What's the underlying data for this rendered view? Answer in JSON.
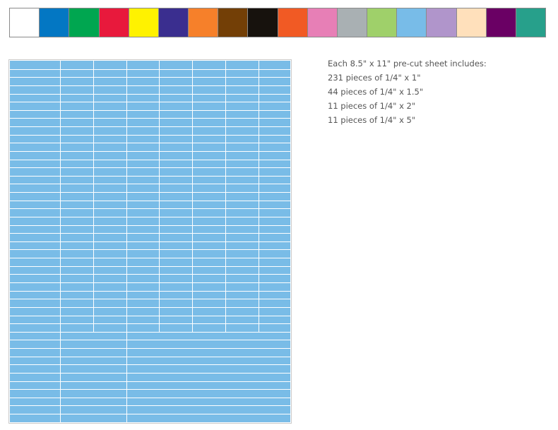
{
  "swatches": [
    {
      "color": "#ffffff",
      "name": "white"
    },
    {
      "color": "#0377c3",
      "name": "blue"
    },
    {
      "color": "#00a650",
      "name": "green"
    },
    {
      "color": "#e8193c",
      "name": "red"
    },
    {
      "color": "#fff200",
      "name": "yellow"
    },
    {
      "color": "#3a2e8f",
      "name": "indigo"
    },
    {
      "color": "#f6802a",
      "name": "orange"
    },
    {
      "color": "#733f06",
      "name": "brown"
    },
    {
      "color": "#17120d",
      "name": "black"
    },
    {
      "color": "#f15a24",
      "name": "red-orange"
    },
    {
      "color": "#e77fb6",
      "name": "pink"
    },
    {
      "color": "#a9b0b3",
      "name": "gray"
    },
    {
      "color": "#9fd06a",
      "name": "light-green"
    },
    {
      "color": "#78bce8",
      "name": "light-blue"
    },
    {
      "color": "#b095cb",
      "name": "lavender"
    },
    {
      "color": "#ffe0bb",
      "name": "peach"
    },
    {
      "color": "#6a0064",
      "name": "purple"
    },
    {
      "color": "#27a08b",
      "name": "teal"
    }
  ],
  "sheet": {
    "label_color": "#79bce7",
    "line_color": "#ffffff"
  },
  "specs": {
    "heading": "Each 8.5\" x 11\" pre-cut sheet includes:",
    "lines": [
      "231 pieces of 1/4\" x 1\"",
      "44 pieces of 1/4\" x 1.5\"",
      "11 pieces of 1/4\" x 2\"",
      "11 pieces of 1/4\" x 5\""
    ]
  }
}
